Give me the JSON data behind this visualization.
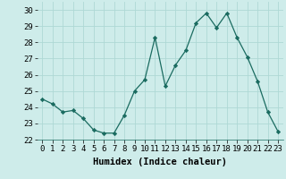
{
  "x": [
    0,
    1,
    2,
    3,
    4,
    5,
    6,
    7,
    8,
    9,
    10,
    11,
    12,
    13,
    14,
    15,
    16,
    17,
    18,
    19,
    20,
    21,
    22,
    23
  ],
  "y": [
    24.5,
    24.2,
    23.7,
    23.8,
    23.3,
    22.6,
    22.4,
    22.4,
    23.5,
    25.0,
    25.7,
    28.3,
    25.3,
    26.6,
    27.5,
    29.2,
    29.8,
    28.9,
    29.8,
    28.3,
    27.1,
    25.6,
    23.7,
    22.5
  ],
  "xlabel": "Humidex (Indice chaleur)",
  "xlim": [
    -0.5,
    23.5
  ],
  "ylim": [
    22,
    30.5
  ],
  "bg_color": "#ceecea",
  "grid_color": "#aed8d5",
  "line_color": "#1a6b60",
  "marker_color": "#1a6b60",
  "yticks": [
    22,
    23,
    24,
    25,
    26,
    27,
    28,
    29,
    30
  ],
  "xticks": [
    0,
    1,
    2,
    3,
    4,
    5,
    6,
    7,
    8,
    9,
    10,
    11,
    12,
    13,
    14,
    15,
    16,
    17,
    18,
    19,
    20,
    21,
    22,
    23
  ],
  "tick_fontsize": 6.5,
  "xlabel_fontsize": 7.5
}
